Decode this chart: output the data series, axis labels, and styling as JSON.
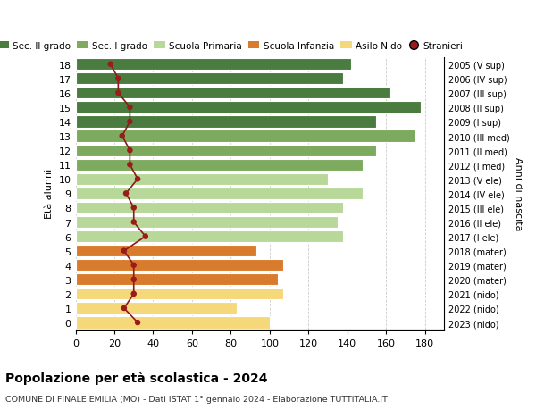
{
  "ages": [
    0,
    1,
    2,
    3,
    4,
    5,
    6,
    7,
    8,
    9,
    10,
    11,
    12,
    13,
    14,
    15,
    16,
    17,
    18
  ],
  "right_labels": [
    "2023 (nido)",
    "2022 (nido)",
    "2021 (nido)",
    "2020 (mater)",
    "2019 (mater)",
    "2018 (mater)",
    "2017 (I ele)",
    "2016 (II ele)",
    "2015 (III ele)",
    "2014 (IV ele)",
    "2013 (V ele)",
    "2012 (I med)",
    "2011 (II med)",
    "2010 (III med)",
    "2009 (I sup)",
    "2008 (II sup)",
    "2007 (III sup)",
    "2006 (IV sup)",
    "2005 (V sup)"
  ],
  "bar_values": [
    100,
    83,
    107,
    104,
    107,
    93,
    138,
    135,
    138,
    148,
    130,
    148,
    155,
    175,
    155,
    178,
    162,
    138,
    142
  ],
  "bar_colors": [
    "#f5d87a",
    "#f5d87a",
    "#f5d87a",
    "#d97b2c",
    "#d97b2c",
    "#d97b2c",
    "#b8d89a",
    "#b8d89a",
    "#b8d89a",
    "#b8d89a",
    "#b8d89a",
    "#7daa5e",
    "#7daa5e",
    "#7daa5e",
    "#4a7c3f",
    "#4a7c3f",
    "#4a7c3f",
    "#4a7c3f",
    "#4a7c3f"
  ],
  "stranieri_values": [
    32,
    25,
    30,
    30,
    30,
    25,
    36,
    30,
    30,
    26,
    32,
    28,
    28,
    24,
    28,
    28,
    22,
    22,
    18
  ],
  "legend_labels": [
    "Sec. II grado",
    "Sec. I grado",
    "Scuola Primaria",
    "Scuola Infanzia",
    "Asilo Nido",
    "Stranieri"
  ],
  "legend_colors": [
    "#4a7c3f",
    "#7daa5e",
    "#b8d89a",
    "#d97b2c",
    "#f5d87a",
    "#9b1a1a"
  ],
  "ylabel": "Età alunni",
  "right_ylabel": "Anni di nascita",
  "title": "Popolazione per età scolastica - 2024",
  "subtitle": "COMUNE DI FINALE EMILIA (MO) - Dati ISTAT 1° gennaio 2024 - Elaborazione TUTTITALIA.IT",
  "xlim": [
    0,
    190
  ],
  "xticks": [
    0,
    20,
    40,
    60,
    80,
    100,
    120,
    140,
    160,
    180
  ],
  "bg_color": "#ffffff",
  "grid_color": "#cccccc",
  "stranieri_line_color": "#8b1a1a",
  "stranieri_dot_color": "#9b1a1a"
}
